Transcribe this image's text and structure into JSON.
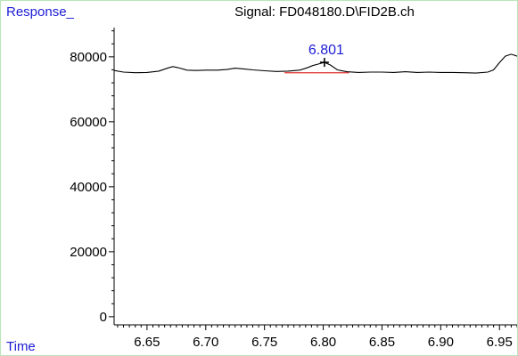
{
  "chart_data": {
    "type": "line",
    "title": "Signal: FD048180.D\\FID2B.ch",
    "ylabel": "Response_",
    "xlabel": "Time",
    "xlim": [
      6.622,
      6.965
    ],
    "ylim": [
      -2500,
      89000
    ],
    "xticks": [
      "6.65",
      "6.70",
      "6.75",
      "6.80",
      "6.85",
      "6.90",
      "6.95"
    ],
    "yticks": [
      "0",
      "20000",
      "40000",
      "60000",
      "80000"
    ],
    "xtick_values": [
      6.65,
      6.7,
      6.75,
      6.8,
      6.85,
      6.9,
      6.95
    ],
    "ytick_values": [
      0,
      20000,
      40000,
      60000,
      80000
    ],
    "series": [
      {
        "color": "#000000",
        "x": [
          6.622,
          6.63,
          6.64,
          6.65,
          6.66,
          6.668,
          6.672,
          6.676,
          6.684,
          6.692,
          6.7,
          6.71,
          6.718,
          6.725,
          6.732,
          6.74,
          6.75,
          6.76,
          6.77,
          6.78,
          6.786,
          6.791,
          6.796,
          6.801,
          6.806,
          6.812,
          6.82,
          6.83,
          6.84,
          6.85,
          6.86,
          6.87,
          6.88,
          6.89,
          6.9,
          6.91,
          6.92,
          6.93,
          6.94,
          6.945,
          6.95,
          6.955,
          6.96,
          6.965
        ],
        "y": [
          75800,
          75300,
          75100,
          75200,
          75600,
          76600,
          77000,
          76700,
          75900,
          75800,
          75900,
          75900,
          76100,
          76500,
          76300,
          76000,
          75700,
          75500,
          75600,
          75900,
          76600,
          77300,
          77800,
          78300,
          77500,
          76000,
          75400,
          75200,
          75300,
          75300,
          75200,
          75400,
          75200,
          75300,
          75200,
          75200,
          75100,
          75000,
          75300,
          76000,
          78200,
          80200,
          80800,
          80200
        ]
      }
    ],
    "peak": {
      "label": "6.801",
      "x": 6.801,
      "y": 78300,
      "label_color": "#1c1cd6",
      "baseline_color": "#e03030",
      "baseline_start": [
        6.767,
        75100
      ],
      "baseline_end": [
        6.822,
        75100
      ]
    },
    "grid": false,
    "frame_color": "#b8e6b8"
  }
}
